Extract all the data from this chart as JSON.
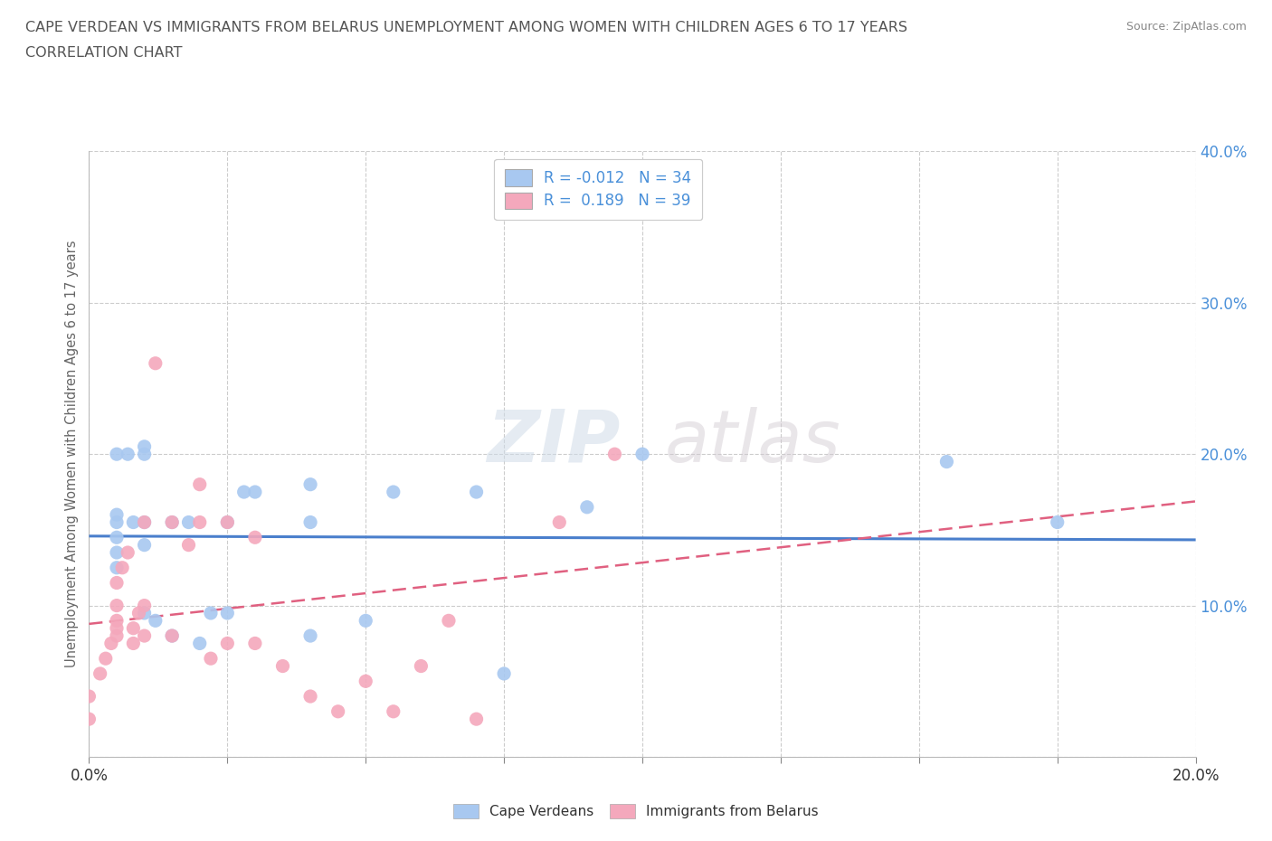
{
  "title_line1": "CAPE VERDEAN VS IMMIGRANTS FROM BELARUS UNEMPLOYMENT AMONG WOMEN WITH CHILDREN AGES 6 TO 17 YEARS",
  "title_line2": "CORRELATION CHART",
  "source_text": "Source: ZipAtlas.com",
  "watermark_left": "ZIP",
  "watermark_right": "atlas",
  "ylabel": "Unemployment Among Women with Children Ages 6 to 17 years",
  "xlim": [
    0,
    0.2
  ],
  "ylim": [
    0,
    0.4
  ],
  "xticks": [
    0.0,
    0.025,
    0.05,
    0.075,
    0.1,
    0.125,
    0.15,
    0.175,
    0.2
  ],
  "yticks": [
    0.0,
    0.1,
    0.2,
    0.3,
    0.4
  ],
  "blue_R": -0.012,
  "pink_R": 0.189,
  "blue_color": "#a8c8f0",
  "pink_color": "#f4a8bc",
  "blue_line_color": "#4a7fcc",
  "pink_line_color": "#e06080",
  "axis_label_color": "#4a90d9",
  "bg_color": "#ffffff",
  "grid_color": "#cccccc",
  "title_color": "#555555",
  "blue_points_x": [
    0.005,
    0.005,
    0.005,
    0.005,
    0.005,
    0.005,
    0.007,
    0.008,
    0.01,
    0.01,
    0.01,
    0.01,
    0.01,
    0.012,
    0.015,
    0.015,
    0.018,
    0.02,
    0.022,
    0.025,
    0.025,
    0.028,
    0.03,
    0.04,
    0.04,
    0.04,
    0.05,
    0.055,
    0.07,
    0.075,
    0.09,
    0.1,
    0.155,
    0.175
  ],
  "blue_points_y": [
    0.125,
    0.135,
    0.145,
    0.155,
    0.16,
    0.2,
    0.2,
    0.155,
    0.095,
    0.14,
    0.155,
    0.2,
    0.205,
    0.09,
    0.08,
    0.155,
    0.155,
    0.075,
    0.095,
    0.095,
    0.155,
    0.175,
    0.175,
    0.08,
    0.155,
    0.18,
    0.09,
    0.175,
    0.175,
    0.055,
    0.165,
    0.2,
    0.195,
    0.155
  ],
  "pink_points_x": [
    0.0,
    0.0,
    0.002,
    0.003,
    0.004,
    0.005,
    0.005,
    0.005,
    0.005,
    0.005,
    0.006,
    0.007,
    0.008,
    0.008,
    0.009,
    0.01,
    0.01,
    0.01,
    0.012,
    0.015,
    0.015,
    0.018,
    0.02,
    0.02,
    0.022,
    0.025,
    0.025,
    0.03,
    0.03,
    0.035,
    0.04,
    0.045,
    0.05,
    0.055,
    0.06,
    0.065,
    0.07,
    0.085,
    0.095
  ],
  "pink_points_y": [
    0.025,
    0.04,
    0.055,
    0.065,
    0.075,
    0.08,
    0.085,
    0.09,
    0.1,
    0.115,
    0.125,
    0.135,
    0.075,
    0.085,
    0.095,
    0.08,
    0.1,
    0.155,
    0.26,
    0.08,
    0.155,
    0.14,
    0.155,
    0.18,
    0.065,
    0.075,
    0.155,
    0.075,
    0.145,
    0.06,
    0.04,
    0.03,
    0.05,
    0.03,
    0.06,
    0.09,
    0.025,
    0.155,
    0.2
  ]
}
